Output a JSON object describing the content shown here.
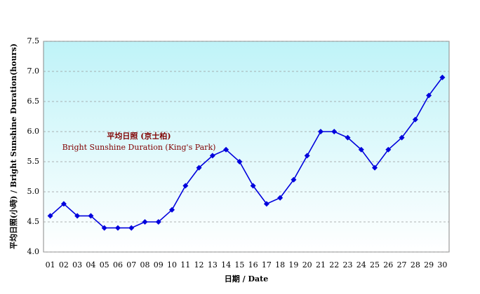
{
  "chart_data": {
    "type": "line",
    "annotation": [
      "平均日照 (京士柏)",
      "Bright Sunshine Duration (King's Park)"
    ],
    "x_label": "日期 / Date",
    "y_label": "平均日照(小時) / Bright Sunshine Duration(hours)",
    "categories": [
      "01",
      "02",
      "03",
      "04",
      "05",
      "06",
      "07",
      "08",
      "09",
      "10",
      "11",
      "12",
      "13",
      "14",
      "15",
      "16",
      "17",
      "18",
      "19",
      "20",
      "21",
      "22",
      "23",
      "24",
      "25",
      "26",
      "27",
      "28",
      "29",
      "30"
    ],
    "values": [
      4.6,
      4.8,
      4.6,
      4.6,
      4.4,
      4.4,
      4.4,
      4.5,
      4.5,
      4.7,
      5.1,
      5.4,
      5.6,
      5.7,
      5.5,
      5.1,
      4.8,
      4.9,
      5.2,
      5.6,
      6.0,
      6.0,
      5.9,
      5.7,
      5.4,
      5.7,
      5.9,
      6.2,
      6.6,
      6.9
    ],
    "color": "#0000dd",
    "ylim": [
      4,
      7.5
    ],
    "yticks": [
      {
        "value": 4,
        "label": "4.0"
      },
      {
        "value": 4.5,
        "label": "4.5"
      },
      {
        "value": 5,
        "label": "5.0"
      },
      {
        "value": 5.5,
        "label": "5.5"
      },
      {
        "value": 6,
        "label": "6.0"
      },
      {
        "value": 6.5,
        "label": "6.5"
      },
      {
        "value": 7,
        "label": "7.0"
      },
      {
        "value": 7.5,
        "label": "7.5"
      }
    ],
    "grid": true
  }
}
